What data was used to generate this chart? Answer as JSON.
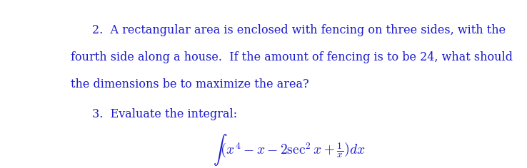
{
  "background_color": "#ffffff",
  "text_color": "#1a1acd",
  "figsize": [
    7.38,
    2.36
  ],
  "dpi": 100,
  "problem2_line1": "2.  A rectangular area is enclosed with fencing on three sides, with the",
  "problem2_line2": "fourth side along a house.  If the amount of fencing is to be 24, what should",
  "problem2_line3": "the dimensions be to maximize the area?",
  "problem3_label": "3.  Evaluate the integral:",
  "integral_latex": "$\\int \\left(x^4 - x - 2\\sec^2 x + \\frac{1}{x}\\right)dx$",
  "font_family": "DejaVu Serif",
  "text_fontsize": 11.5,
  "math_fontsize": 14
}
